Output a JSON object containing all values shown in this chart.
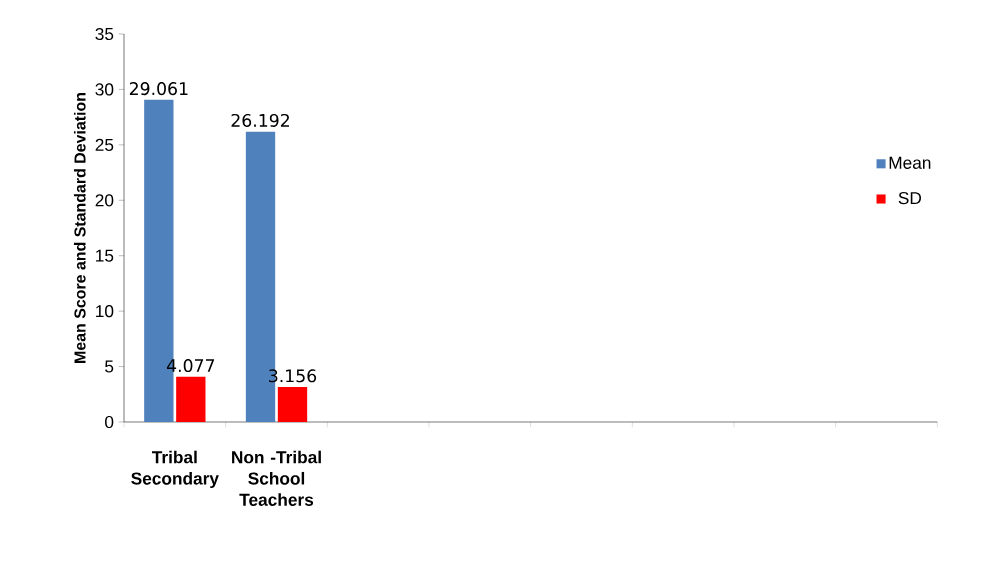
{
  "chart_data": {
    "type": "bar",
    "ylabel": "Mean Score and Standard Deviation",
    "categories": [
      "Tribal Secondary",
      "Non -Tribal School Teachers",
      null,
      null,
      null,
      null,
      null,
      null
    ],
    "series": [
      {
        "name": "Mean",
        "color": "#4f81bd",
        "values": [
          29.061,
          26.192,
          null,
          null,
          null,
          null,
          null,
          null
        ]
      },
      {
        "name": "SD",
        "color": "#ff0000",
        "values": [
          4.077,
          3.156,
          null,
          null,
          null,
          null,
          null,
          null
        ]
      }
    ],
    "ylim": [
      0,
      35
    ],
    "yticks": [
      0,
      5,
      10,
      15,
      20,
      25,
      30,
      35
    ],
    "grid": false,
    "legend": "right",
    "data_labels": true
  }
}
